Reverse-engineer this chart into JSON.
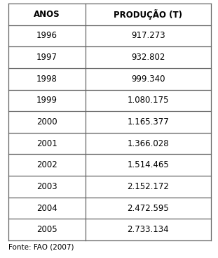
{
  "header": [
    "ANOS",
    "PRODUÇÃO (T)"
  ],
  "rows": [
    [
      "1996",
      "917.273"
    ],
    [
      "1997",
      "932.802"
    ],
    [
      "1998",
      "999.340"
    ],
    [
      "1999",
      "1.080.175"
    ],
    [
      "2000",
      "1.165.377"
    ],
    [
      "2001",
      "1.366.028"
    ],
    [
      "2002",
      "1.514.465"
    ],
    [
      "2003",
      "2.152.172"
    ],
    [
      "2004",
      "2.472.595"
    ],
    [
      "2005",
      "2.733.134"
    ]
  ],
  "footnote": "Fonte: FAO (2007)",
  "bg_color": "#ffffff",
  "line_color": "#666666",
  "text_color": "#000000",
  "header_fontsize": 8.5,
  "cell_fontsize": 8.5,
  "footnote_fontsize": 7.5,
  "col_split": 0.38,
  "fig_width": 3.11,
  "fig_height": 3.67,
  "dpi": 100
}
